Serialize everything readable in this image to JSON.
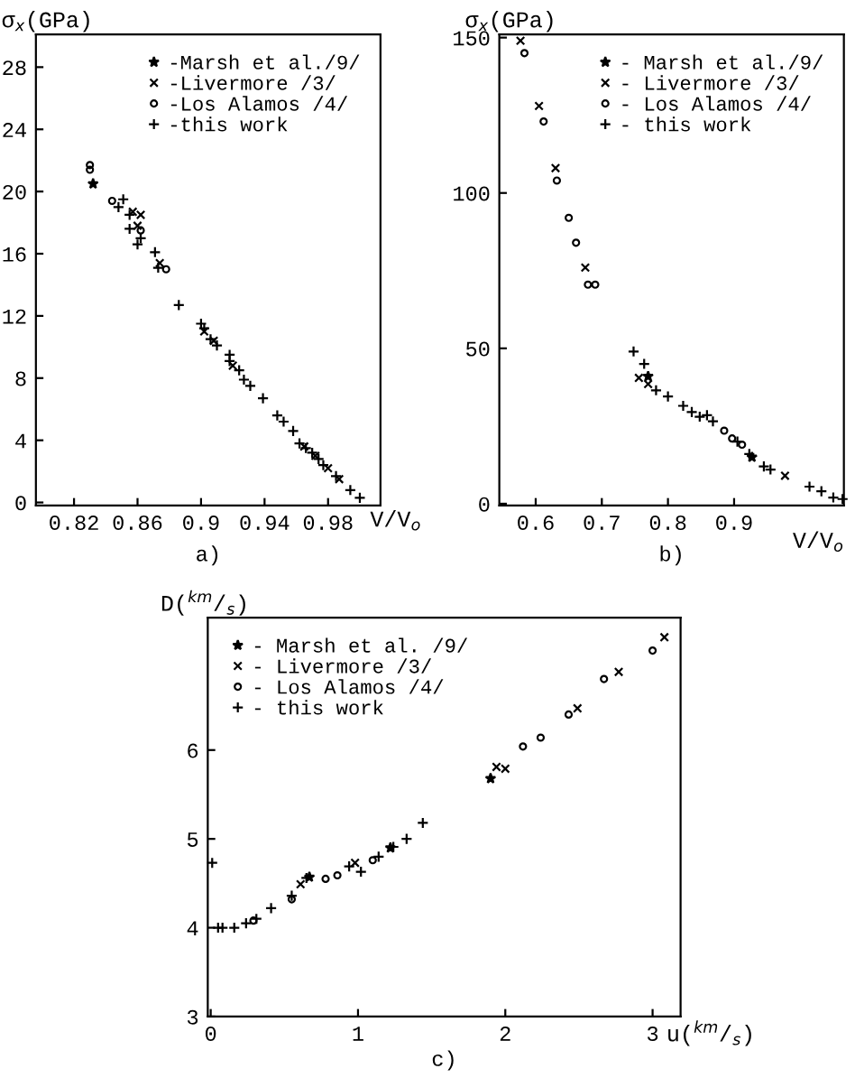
{
  "chart_data": [
    {
      "type": "scatter",
      "xlabel": "V/V$_{o}$",
      "ylabel": "σ$_{x}$(GPa)",
      "annotations": [
        "a)"
      ],
      "xlim": [
        0.796,
        1.013
      ],
      "ylim": [
        -0.2,
        30.1
      ],
      "xticks": [
        0.82,
        0.86,
        0.9,
        0.94,
        0.98
      ],
      "yticks": [
        0,
        4,
        8,
        12,
        16,
        20,
        24,
        28
      ],
      "legend": "top right",
      "grid": false,
      "series": [
        {
          "name": "-Marsh et al./9/",
          "color": "#000000",
          "marker": "star",
          "x": [
            0.832
          ],
          "values": [
            20.5
          ]
        },
        {
          "name": "-Livermore /3/",
          "color": "#000000",
          "marker": "cross",
          "x": [
            0.857,
            0.862,
            0.86,
            0.874,
            0.902,
            0.908,
            0.92,
            0.965,
            0.972,
            0.98,
            0.987
          ],
          "values": [
            18.7,
            18.5,
            17.8,
            15.4,
            11.0,
            10.4,
            8.8,
            3.6,
            3.0,
            2.2,
            1.5
          ]
        },
        {
          "name": "-Los Alamos /4/",
          "color": "#000000",
          "marker": "circle",
          "x": [
            0.83,
            0.83,
            0.844,
            0.862,
            0.878
          ],
          "values": [
            21.7,
            21.4,
            19.4,
            17.5,
            15.0
          ]
        },
        {
          "name": "-this work",
          "color": "#000000",
          "marker": "plus",
          "x": [
            0.848,
            0.851,
            0.855,
            0.855,
            0.86,
            0.862,
            0.871,
            0.873,
            0.886,
            0.9,
            0.902,
            0.906,
            0.91,
            0.918,
            0.918,
            0.924,
            0.927,
            0.931,
            0.939,
            0.948,
            0.952,
            0.958,
            0.962,
            0.966,
            0.97,
            0.974,
            0.977,
            0.985,
            0.994,
            1.0
          ],
          "values": [
            19.0,
            19.5,
            17.6,
            18.5,
            16.6,
            17.0,
            16.1,
            15.1,
            12.7,
            11.5,
            11.2,
            10.5,
            10.1,
            9.5,
            9.1,
            8.5,
            7.9,
            7.5,
            6.7,
            5.6,
            5.2,
            4.6,
            3.8,
            3.5,
            3.2,
            2.8,
            2.4,
            1.7,
            0.8,
            0.3
          ]
        }
      ]
    },
    {
      "type": "scatter",
      "xlabel": "V/V$_{o}$",
      "ylabel": "σ$_{x}$(GPa)",
      "annotations": [
        "b)"
      ],
      "xlim": [
        0.545,
        1.066
      ],
      "ylim": [
        -0.6,
        151
      ],
      "xticks": [
        0.6,
        0.7,
        0.8,
        0.9
      ],
      "yticks": [
        0,
        50,
        100,
        150
      ],
      "legend": "top right",
      "grid": false,
      "series": [
        {
          "name": "- Marsh et al./9/",
          "color": "#000000",
          "marker": "star",
          "x": [
            0.77,
            0.927
          ],
          "values": [
            41,
            15
          ]
        },
        {
          "name": "- Livermore /3/",
          "color": "#000000",
          "marker": "cross",
          "x": [
            0.577,
            0.605,
            0.63,
            0.675,
            0.756,
            0.77,
            0.977
          ],
          "values": [
            149,
            128,
            108,
            76,
            40.5,
            38.5,
            9
          ]
        },
        {
          "name": "- Los Alamos /4/",
          "color": "#000000",
          "marker": "circle",
          "x": [
            0.583,
            0.612,
            0.632,
            0.65,
            0.661,
            0.679,
            0.69,
            0.885,
            0.897,
            0.912
          ],
          "values": [
            145,
            123,
            104,
            92,
            84,
            70.5,
            70.5,
            23.5,
            21,
            19
          ]
        },
        {
          "name": "- this work",
          "color": "#000000",
          "marker": "plus",
          "x": [
            0.748,
            0.764,
            0.782,
            0.8,
            0.823,
            0.836,
            0.848,
            0.859,
            0.868,
            0.905,
            0.923,
            0.945,
            0.955,
            1.014,
            1.032,
            1.05,
            1.064
          ],
          "values": [
            49,
            45,
            36.5,
            34.5,
            31.5,
            29.5,
            28,
            28.5,
            26.5,
            20,
            16,
            12,
            11,
            5.5,
            4,
            2,
            1.5
          ]
        }
      ]
    },
    {
      "type": "scatter",
      "xlabel": "u($^{km}$/$_{s}$)",
      "ylabel": "D($^{km}$/$_{s}$)",
      "annotations": [
        "c)"
      ],
      "xlim": [
        -0.02,
        3.19
      ],
      "ylim": [
        3,
        7.49
      ],
      "xticks": [
        0,
        1,
        2,
        3
      ],
      "yticks": [
        3,
        4,
        5,
        6
      ],
      "legend": "top left",
      "grid": false,
      "series": [
        {
          "name": "- Marsh et al. /9/",
          "color": "#000000",
          "marker": "star",
          "x": [
            1.9,
            0.67,
            1.22
          ],
          "values": [
            5.68,
            4.57,
            4.9
          ]
        },
        {
          "name": "- Livermore /3/",
          "color": "#000000",
          "marker": "cross",
          "x": [
            0.61,
            0.98,
            1.94,
            2.0,
            2.49,
            2.77,
            3.08
          ],
          "values": [
            4.49,
            4.73,
            5.81,
            5.79,
            6.47,
            6.88,
            7.27
          ]
        },
        {
          "name": "- Los Alamos /4/",
          "color": "#000000",
          "marker": "circle",
          "x": [
            0.29,
            0.55,
            0.78,
            0.86,
            1.1,
            2.12,
            2.24,
            2.43,
            2.67,
            3.0
          ],
          "values": [
            4.08,
            4.32,
            4.55,
            4.59,
            4.76,
            6.04,
            6.14,
            6.4,
            6.8,
            7.12
          ]
        },
        {
          "name": "- this work",
          "color": "#000000",
          "marker": "plus",
          "x": [
            0.01,
            0.05,
            0.08,
            0.16,
            0.24,
            0.31,
            0.41,
            0.55,
            0.65,
            0.94,
            1.02,
            1.14,
            1.24,
            1.33,
            1.44
          ],
          "values": [
            4.73,
            4.0,
            4.0,
            4.0,
            4.05,
            4.1,
            4.22,
            4.36,
            4.56,
            4.69,
            4.63,
            4.8,
            4.91,
            5.0,
            5.18
          ]
        }
      ]
    }
  ]
}
